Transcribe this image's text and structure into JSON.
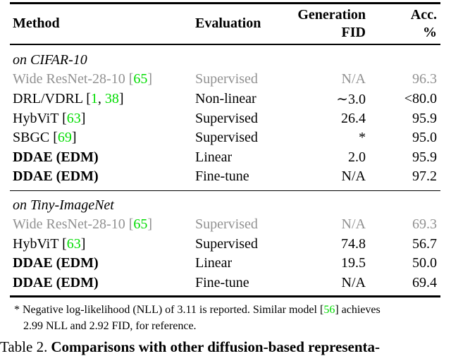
{
  "colors": {
    "citation_green": "#00DC00",
    "muted_gray": "#919191",
    "text_black": "#000000"
  },
  "table": {
    "headers": {
      "method": "Method",
      "evaluation": "Evaluation",
      "generation_line1": "Generation",
      "generation_line2": "FID",
      "acc_line1": "Acc.",
      "acc_line2": "%"
    },
    "sections": [
      {
        "label": "on CIFAR-10",
        "rows": [
          {
            "method": [
              {
                "t": "Wide ResNet-28-10 [",
                "s": "gray"
              },
              {
                "t": "65",
                "s": "green"
              },
              {
                "t": "]",
                "s": "gray"
              }
            ],
            "evaluation": "Supervised",
            "fid": "N/A",
            "acc": "96.3",
            "muted": true,
            "bold": false
          },
          {
            "method": [
              {
                "t": "DRL/VDRL ["
              },
              {
                "t": "1",
                "s": "green"
              },
              {
                "t": ", "
              },
              {
                "t": "38",
                "s": "green"
              },
              {
                "t": "]"
              }
            ],
            "evaluation": "Non-linear",
            "fid": "∼3.0",
            "acc": "<80.0",
            "muted": false,
            "bold": false
          },
          {
            "method": [
              {
                "t": "HybViT ["
              },
              {
                "t": "63",
                "s": "green"
              },
              {
                "t": "]"
              }
            ],
            "evaluation": "Supervised",
            "fid": "26.4",
            "acc": "95.9",
            "muted": false,
            "bold": false
          },
          {
            "method": [
              {
                "t": "SBGC ["
              },
              {
                "t": "69",
                "s": "green"
              },
              {
                "t": "]"
              }
            ],
            "evaluation": "Supervised",
            "fid": "*",
            "acc": "95.0",
            "muted": false,
            "bold": false
          },
          {
            "method": [
              {
                "t": "DDAE (EDM)"
              }
            ],
            "evaluation": "Linear",
            "fid": "2.0",
            "acc": "95.9",
            "muted": false,
            "bold": true
          },
          {
            "method": [
              {
                "t": "DDAE (EDM)"
              }
            ],
            "evaluation": "Fine-tune",
            "fid": "N/A",
            "acc": "97.2",
            "muted": false,
            "bold": true
          }
        ]
      },
      {
        "label": "on Tiny-ImageNet",
        "rows": [
          {
            "method": [
              {
                "t": "Wide ResNet-28-10 [",
                "s": "gray"
              },
              {
                "t": "65",
                "s": "green"
              },
              {
                "t": "]",
                "s": "gray"
              }
            ],
            "evaluation": "Supervised",
            "fid": "N/A",
            "acc": "69.3",
            "muted": true,
            "bold": false
          },
          {
            "method": [
              {
                "t": "HybViT ["
              },
              {
                "t": "63",
                "s": "green"
              },
              {
                "t": "]"
              }
            ],
            "evaluation": "Supervised",
            "fid": "74.8",
            "acc": "56.7",
            "muted": false,
            "bold": false
          },
          {
            "method": [
              {
                "t": "DDAE (EDM)"
              }
            ],
            "evaluation": "Linear",
            "fid": "19.5",
            "acc": "50.0",
            "muted": false,
            "bold": true
          },
          {
            "method": [
              {
                "t": "DDAE (EDM)"
              }
            ],
            "evaluation": "Fine-tune",
            "fid": "N/A",
            "acc": "69.4",
            "muted": false,
            "bold": true
          }
        ]
      }
    ]
  },
  "footnote": {
    "seg1": "* Negative log-likelihood (NLL) of 3.11 is reported. Similar model [",
    "ref": "56",
    "seg2": "] achieves",
    "line2": "2.99 NLL and 2.92 FID, for reference."
  },
  "caption": {
    "prefix": "Table 2.",
    "bold_text": "Comparisons with other diffusion-based representa-"
  }
}
